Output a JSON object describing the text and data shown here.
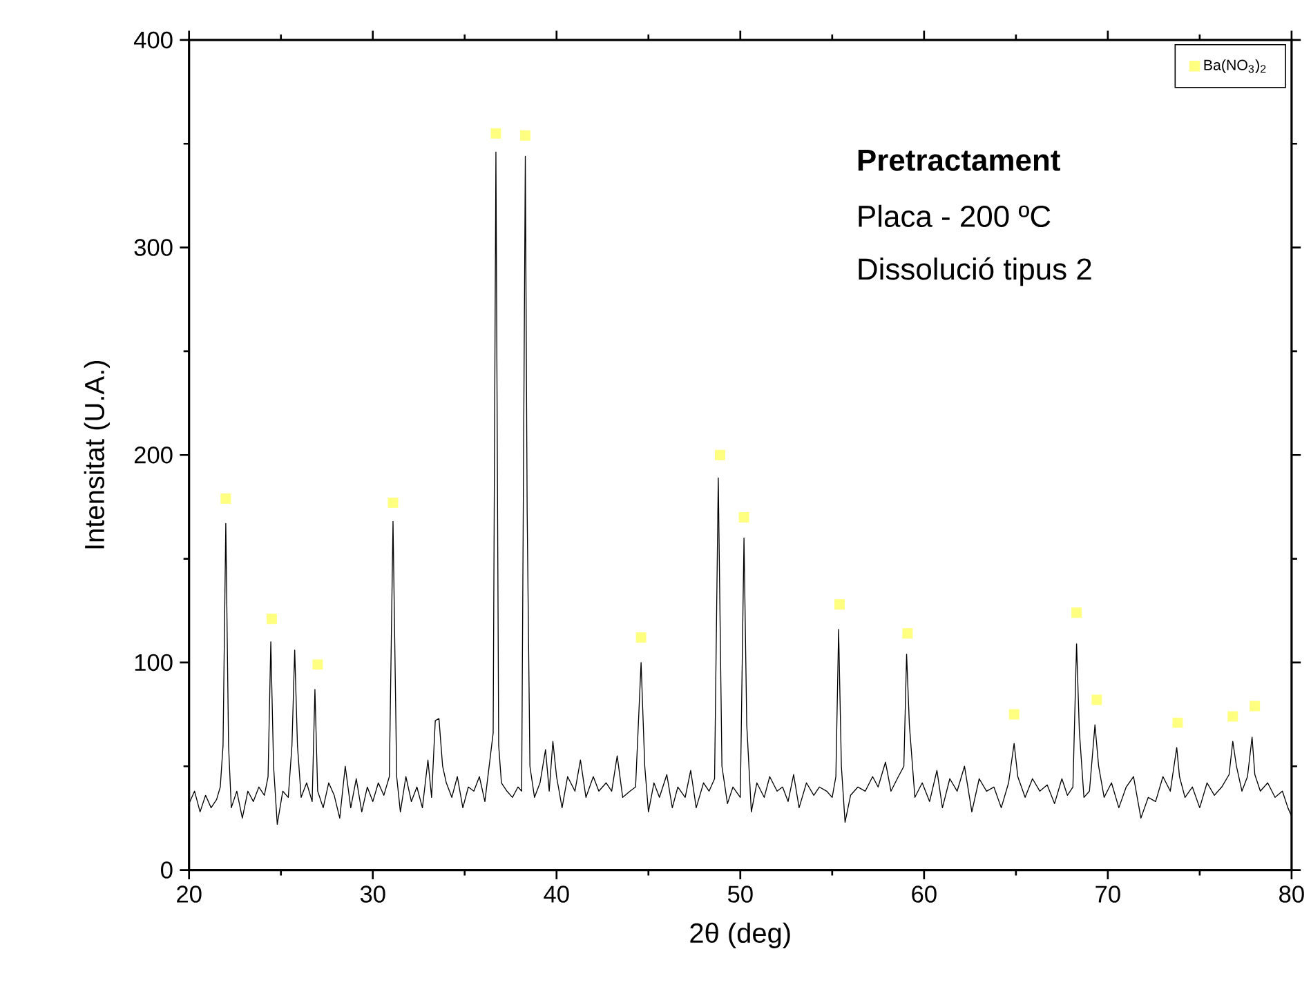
{
  "chart_data": {
    "type": "line",
    "xlabel": "2θ (deg)",
    "ylabel": "Intensitat (U.A.)",
    "xlim": [
      20,
      80
    ],
    "ylim": [
      0,
      400
    ],
    "xticks": [
      20,
      30,
      40,
      50,
      60,
      70,
      80
    ],
    "yticks": [
      0,
      100,
      200,
      300,
      400
    ],
    "grid": false,
    "legend": "top right",
    "annotations": [
      "Pretractament",
      "Placa - 200 ºC",
      "Dissolució tipus 2"
    ],
    "series": [
      {
        "color": "#000000",
        "x": [
          20.0,
          20.3,
          20.6,
          20.9,
          21.2,
          21.5,
          21.7,
          21.85,
          22.0,
          22.15,
          22.3,
          22.6,
          22.9,
          23.2,
          23.5,
          23.8,
          24.1,
          24.3,
          24.45,
          24.6,
          24.8,
          25.1,
          25.4,
          25.6,
          25.75,
          25.9,
          26.1,
          26.4,
          26.7,
          26.85,
          27.0,
          27.3,
          27.6,
          27.9,
          28.2,
          28.5,
          28.8,
          29.1,
          29.4,
          29.7,
          30.0,
          30.3,
          30.6,
          30.9,
          31.1,
          31.3,
          31.5,
          31.8,
          32.1,
          32.4,
          32.7,
          33.0,
          33.2,
          33.4,
          33.6,
          33.8,
          34.0,
          34.3,
          34.6,
          34.9,
          35.2,
          35.5,
          35.8,
          36.1,
          36.4,
          36.55,
          36.7,
          36.85,
          37.0,
          37.3,
          37.6,
          37.9,
          38.1,
          38.3,
          38.4,
          38.55,
          38.8,
          39.1,
          39.4,
          39.6,
          39.8,
          40.0,
          40.3,
          40.6,
          41.0,
          41.3,
          41.6,
          42.0,
          42.3,
          42.7,
          43.0,
          43.3,
          43.6,
          44.0,
          44.3,
          44.6,
          44.8,
          45.0,
          45.3,
          45.6,
          46.0,
          46.3,
          46.6,
          47.0,
          47.3,
          47.6,
          48.0,
          48.3,
          48.6,
          48.8,
          49.0,
          49.3,
          49.6,
          50.0,
          50.2,
          50.35,
          50.6,
          50.9,
          51.3,
          51.6,
          52.0,
          52.3,
          52.6,
          52.9,
          53.2,
          53.6,
          54.0,
          54.3,
          54.7,
          55.0,
          55.2,
          55.35,
          55.5,
          55.7,
          56.0,
          56.4,
          56.8,
          57.2,
          57.5,
          57.9,
          58.2,
          58.6,
          58.9,
          59.05,
          59.2,
          59.5,
          59.9,
          60.3,
          60.7,
          61.0,
          61.4,
          61.8,
          62.2,
          62.6,
          63.0,
          63.4,
          63.8,
          64.2,
          64.6,
          64.9,
          65.1,
          65.5,
          65.9,
          66.3,
          66.7,
          67.1,
          67.5,
          67.8,
          68.1,
          68.3,
          68.45,
          68.7,
          69.0,
          69.3,
          69.5,
          69.8,
          70.2,
          70.6,
          71.0,
          71.4,
          71.8,
          72.2,
          72.6,
          73.0,
          73.4,
          73.75,
          73.9,
          74.2,
          74.6,
          75.0,
          75.4,
          75.8,
          76.2,
          76.6,
          76.8,
          77.0,
          77.3,
          77.6,
          77.85,
          78.0,
          78.3,
          78.7,
          79.1,
          79.5,
          79.8,
          80.0
        ],
        "values": [
          32,
          38,
          28,
          36,
          30,
          34,
          40,
          60,
          167,
          60,
          30,
          38,
          25,
          38,
          33,
          40,
          36,
          45,
          110,
          50,
          22,
          38,
          35,
          60,
          106,
          60,
          35,
          42,
          33,
          87,
          38,
          30,
          42,
          36,
          25,
          50,
          30,
          44,
          28,
          40,
          33,
          42,
          36,
          45,
          168,
          45,
          28,
          45,
          33,
          40,
          30,
          53,
          35,
          72,
          73,
          50,
          42,
          35,
          45,
          30,
          40,
          38,
          45,
          33,
          55,
          66,
          346,
          60,
          42,
          38,
          35,
          40,
          38,
          344,
          173,
          50,
          35,
          42,
          58,
          38,
          62,
          45,
          30,
          45,
          38,
          53,
          35,
          45,
          38,
          42,
          38,
          55,
          35,
          38,
          40,
          100,
          50,
          28,
          42,
          35,
          46,
          30,
          40,
          35,
          48,
          30,
          42,
          38,
          44,
          189,
          50,
          32,
          40,
          35,
          160,
          70,
          28,
          42,
          35,
          45,
          38,
          40,
          33,
          46,
          30,
          42,
          36,
          40,
          38,
          35,
          45,
          116,
          50,
          23,
          36,
          40,
          38,
          45,
          40,
          52,
          38,
          45,
          50,
          104,
          70,
          35,
          42,
          33,
          48,
          30,
          44,
          38,
          50,
          28,
          44,
          38,
          40,
          30,
          42,
          61,
          45,
          35,
          44,
          38,
          41,
          32,
          44,
          36,
          40,
          109,
          67,
          35,
          38,
          70,
          50,
          35,
          42,
          30,
          40,
          45,
          25,
          35,
          33,
          45,
          38,
          59,
          45,
          35,
          40,
          30,
          42,
          36,
          40,
          46,
          62,
          50,
          38,
          45,
          64,
          46,
          38,
          42,
          35,
          38,
          30,
          26
        ]
      },
      {
        "type": "scatter",
        "name": "Ba(NO$_{3}$)$_{2}$",
        "color": "#ffff80",
        "marker": "square",
        "x": [
          22.0,
          24.5,
          27.0,
          31.1,
          36.7,
          38.3,
          44.6,
          48.9,
          50.2,
          55.4,
          59.1,
          64.9,
          68.3,
          69.4,
          73.8,
          76.8,
          78.0
        ],
        "values": [
          179,
          121,
          99,
          177,
          355,
          354,
          112,
          200,
          170,
          128,
          114,
          75,
          124,
          82,
          71,
          74,
          79
        ]
      }
    ]
  }
}
